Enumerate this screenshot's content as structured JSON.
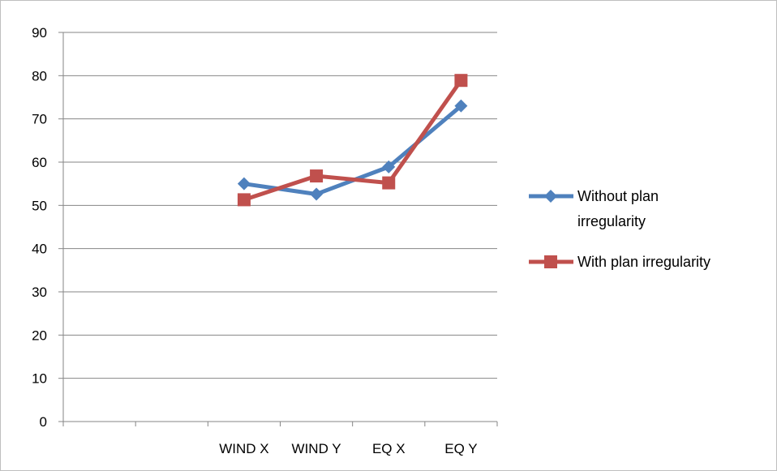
{
  "chart_data": {
    "type": "line",
    "title": "",
    "xlabel": "",
    "ylabel": "",
    "categories": [
      "",
      "",
      "WIND X",
      "WIND Y",
      "EQ X",
      "EQ Y"
    ],
    "ylim": [
      0,
      90
    ],
    "yticks": [
      0,
      10,
      20,
      30,
      40,
      50,
      60,
      70,
      80,
      90
    ],
    "grid": true,
    "legend_position": "right",
    "series": [
      {
        "name": "Without plan irregularity",
        "name_lines": [
          "Without plan",
          "irregularity"
        ],
        "color": "#4f81bd",
        "marker": "diamond",
        "values": [
          null,
          null,
          55,
          52.6,
          58.9,
          73
        ]
      },
      {
        "name": "With plan irregularity",
        "name_lines": [
          "With plan irregularity"
        ],
        "color": "#c0504d",
        "marker": "square",
        "values": [
          null,
          null,
          51.3,
          56.8,
          55.2,
          78.9
        ]
      }
    ]
  }
}
